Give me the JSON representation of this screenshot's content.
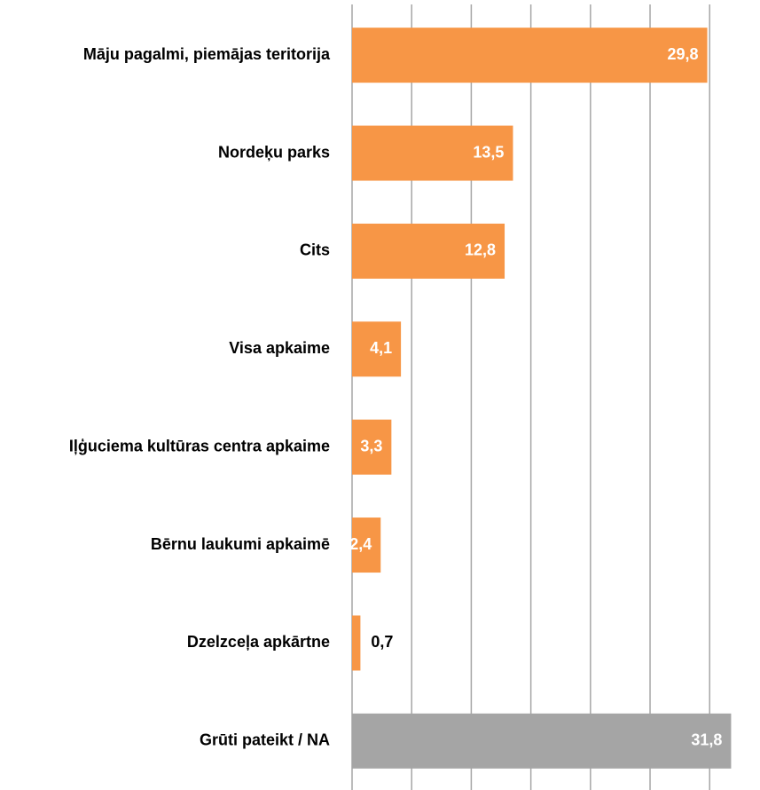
{
  "chart_data": {
    "type": "barh",
    "categories": [
      "Māju pagalmi, piemājas teritorija",
      "Nordeķu parks",
      "Cits",
      "Visa apkaime",
      "Iļģuciema kultūras centra apkaime",
      "Bērnu laukumi apkaimē",
      "Dzelzceļa apkārtne",
      "Grūti pateikt / NA"
    ],
    "values": [
      29.8,
      13.5,
      12.8,
      4.1,
      3.3,
      2.4,
      0.7,
      31.8
    ],
    "value_labels": [
      "29,8",
      "13,5",
      "12,8",
      "4,1",
      "3,3",
      "2,4",
      "0,7",
      "31,8"
    ],
    "colors": [
      "#f79646",
      "#f79646",
      "#f79646",
      "#f79646",
      "#f79646",
      "#f79646",
      "#f79646",
      "#a5a5a5"
    ],
    "xlim": [
      0,
      34
    ],
    "xticks": [
      0,
      5,
      10,
      15,
      20,
      25,
      30
    ],
    "grid": true
  }
}
